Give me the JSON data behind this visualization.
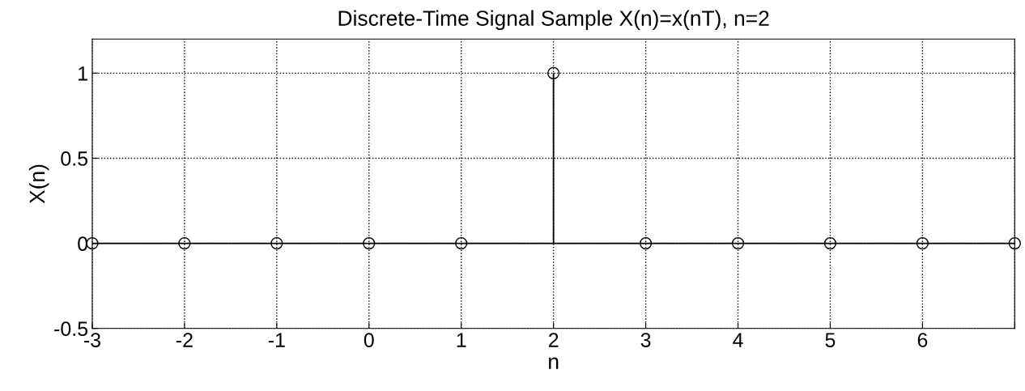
{
  "chart_data": {
    "type": "lollipop",
    "title": "Discrete-Time Signal Sample X(n)=x(nT), n=2",
    "xlabel": "n",
    "ylabel": "X(n)",
    "x": [
      -3,
      -2,
      -1,
      0,
      1,
      2,
      3,
      4,
      5,
      6,
      7
    ],
    "series": [
      {
        "color": "#000000",
        "values": [
          0,
          0,
          0,
          0,
          0,
          1,
          0,
          0,
          0,
          0,
          0
        ]
      }
    ],
    "xlim": [
      -3,
      7
    ],
    "xticks": [
      -3,
      -2,
      -1,
      0,
      1,
      2,
      3,
      4,
      5,
      6,
      {
        "value": 7,
        "label": null
      }
    ],
    "ylim": [
      -0.5,
      1.2
    ],
    "yticks": [
      -0.5,
      0,
      0.5,
      1
    ],
    "grid": true,
    "marker": "circle",
    "line_style": "dotted"
  }
}
